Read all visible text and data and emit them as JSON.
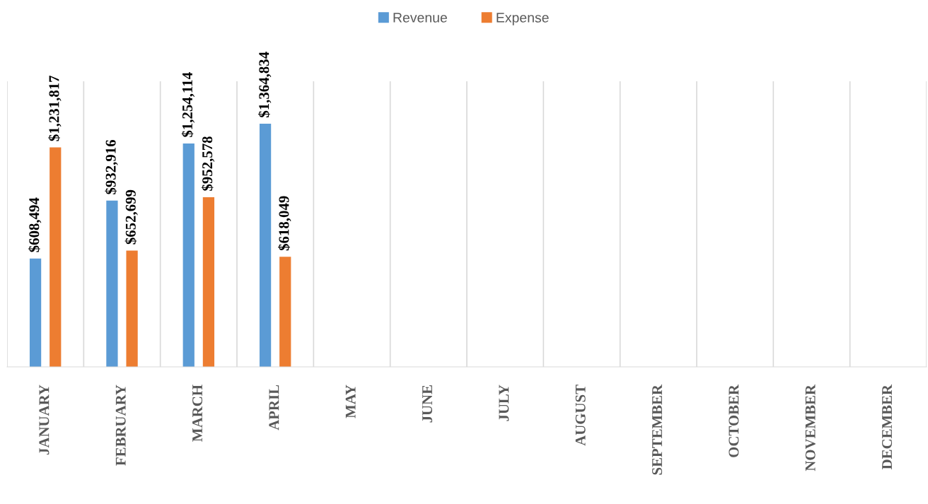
{
  "chart_data": {
    "type": "bar",
    "categories": [
      "JANUARY",
      "FEBRUARY",
      "MARCH",
      "APRIL",
      "MAY",
      "JUNE",
      "JULY",
      "AUGUST",
      "SEPTEMBER",
      "OCTOBER",
      "NOVEMBER",
      "DECEMBER"
    ],
    "series": [
      {
        "name": "Revenue",
        "color": "#5b9bd5",
        "values": [
          608494,
          932916,
          1254114,
          1364834,
          null,
          null,
          null,
          null,
          null,
          null,
          null,
          null
        ],
        "value_labels": [
          "$608,494",
          "$932,916",
          "$1,254,114",
          "$1,364,834",
          null,
          null,
          null,
          null,
          null,
          null,
          null,
          null
        ]
      },
      {
        "name": "Expense",
        "color": "#ed7d31",
        "values": [
          1231817,
          652699,
          952578,
          618049,
          null,
          null,
          null,
          null,
          null,
          null,
          null,
          null
        ],
        "value_labels": [
          "$1,231,817",
          "$652,699",
          "$952,578",
          "$618,049",
          null,
          null,
          null,
          null,
          null,
          null,
          null,
          null
        ]
      }
    ],
    "grid": "x",
    "legend": "top",
    "tick_labels": "x"
  }
}
